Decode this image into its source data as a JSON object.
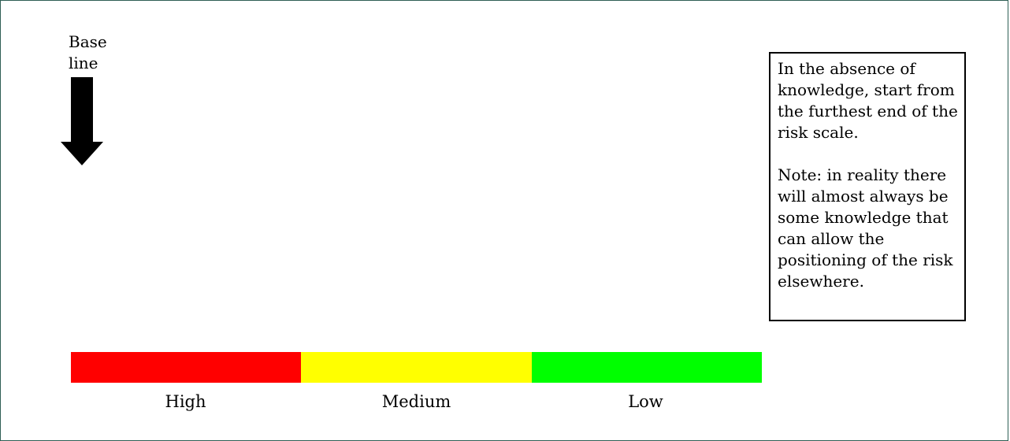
{
  "baseline": {
    "line1": "Base",
    "line2": "line"
  },
  "note": {
    "paragraph1": "In the absence of knowledge, start from the furthest end of the risk scale.",
    "paragraph2": "Note: in reality there will almost always be some knowledge that can allow the positioning of the risk elsewhere."
  },
  "scale": {
    "segments": [
      {
        "label": "High",
        "color": "#ff0000"
      },
      {
        "label": "Medium",
        "color": "#ffff00"
      },
      {
        "label": "Low",
        "color": "#00ff00"
      }
    ]
  },
  "icons": {
    "baseline_arrow": "arrow-down-icon"
  }
}
